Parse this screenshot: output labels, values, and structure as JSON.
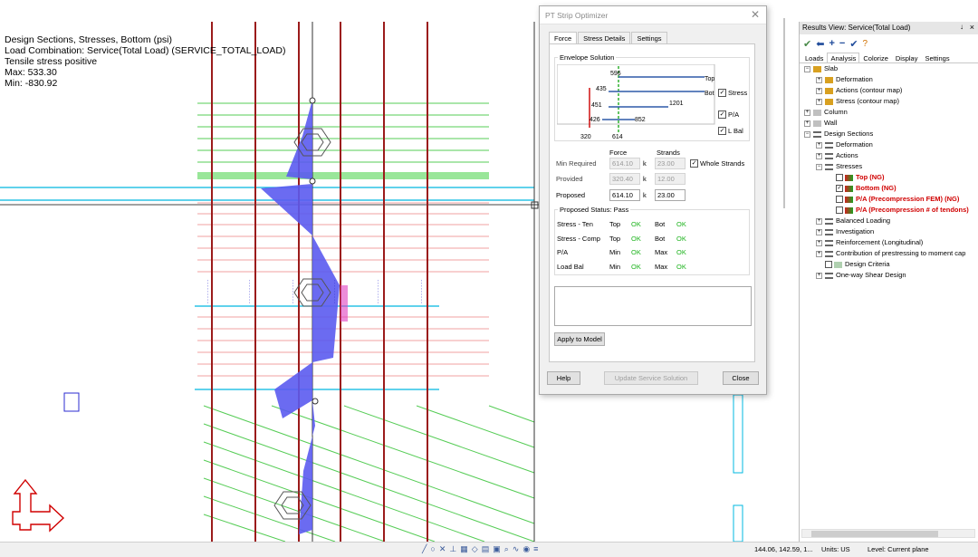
{
  "canvas": {
    "heading": "Design Sections, Stresses, Bottom (psi)",
    "load_combination": "Load Combination: Service(Total Load) (SERVICE_TOTAL_LOAD)",
    "note": "Tensile stress positive",
    "max": "Max: 533.30",
    "min": "Min: -830.92"
  },
  "dialog": {
    "title": "PT Strip Optimizer",
    "tabs": [
      "Force",
      "Stress Details",
      "Settings"
    ],
    "envelope_label": "Envelope Solution",
    "envelope": {
      "top_value": "596",
      "v435": "435",
      "v451": "451",
      "v1201": "1201",
      "v426": "426",
      "v852": "852",
      "x_left": "320",
      "x_mid": "614",
      "label_top": "Top",
      "label_bot": "Bot"
    },
    "checks": {
      "stress": "Stress",
      "pa": "P/A",
      "lbal": "L Bal"
    },
    "col_force": "Force",
    "col_strands": "Strands",
    "rows": {
      "min_required": {
        "label": "Min Required",
        "force": "614.10",
        "unit": "k",
        "strands": "23.00"
      },
      "provided": {
        "label": "Provided",
        "force": "320.40",
        "unit": "k",
        "strands": "12.00"
      },
      "proposed": {
        "label": "Proposed",
        "force": "614.10",
        "unit": "k",
        "strands": "23.00"
      }
    },
    "whole_strands": "Whole Strands",
    "status_title": "Proposed Status: Pass",
    "status_rows": [
      {
        "label": "Stress - Ten",
        "a": "Top",
        "av": "OK",
        "b": "Bot",
        "bv": "OK"
      },
      {
        "label": "Stress - Comp",
        "a": "Top",
        "av": "OK",
        "b": "Bot",
        "bv": "OK"
      },
      {
        "label": "P/A",
        "a": "Min",
        "av": "OK",
        "b": "Max",
        "bv": "OK"
      },
      {
        "label": "Load Bal",
        "a": "Min",
        "av": "OK",
        "b": "Max",
        "bv": "OK"
      }
    ],
    "apply": "Apply to Model",
    "help": "Help",
    "update": "Update Service Solution",
    "close": "Close"
  },
  "results": {
    "title": "Results View: Service(Total Load)",
    "pin": "↓",
    "close": "×",
    "tabs": [
      "Loads",
      "Analysis",
      "Colorize",
      "Display",
      "Settings"
    ],
    "tree": [
      {
        "label": "Slab"
      },
      {
        "label": "Deformation"
      },
      {
        "label": "Actions (contour map)"
      },
      {
        "label": "Stress (contour map)"
      },
      {
        "label": "Column"
      },
      {
        "label": "Wall"
      },
      {
        "label": "Design Sections"
      },
      {
        "label": "Deformation"
      },
      {
        "label": "Actions"
      },
      {
        "label": "Stresses"
      },
      {
        "label": "Top (NG)"
      },
      {
        "label": "Bottom (NG)"
      },
      {
        "label": "P/A (Precompression FEM) (NG)"
      },
      {
        "label": "P/A (Precompression # of tendons)"
      },
      {
        "label": "Balanced Loading"
      },
      {
        "label": "Investigation"
      },
      {
        "label": "Reinforcement (Longitudinal)"
      },
      {
        "label": "Contribution of prestressing to moment cap"
      },
      {
        "label": "Design Criteria"
      },
      {
        "label": "One-way Shear Design"
      }
    ]
  },
  "status": {
    "coords": "144.06, 142.59, 1...",
    "units": "Units: US",
    "level": "Level: Current plane"
  },
  "colors": {
    "accent": "#2e5aa8",
    "ok": "#1cb31c",
    "ng": "#d00000",
    "diagram_fill": "#5b5bf0",
    "strip_red": "#9b1b1b",
    "cyan": "#00b8e0",
    "green_lines": "#33cc33"
  }
}
